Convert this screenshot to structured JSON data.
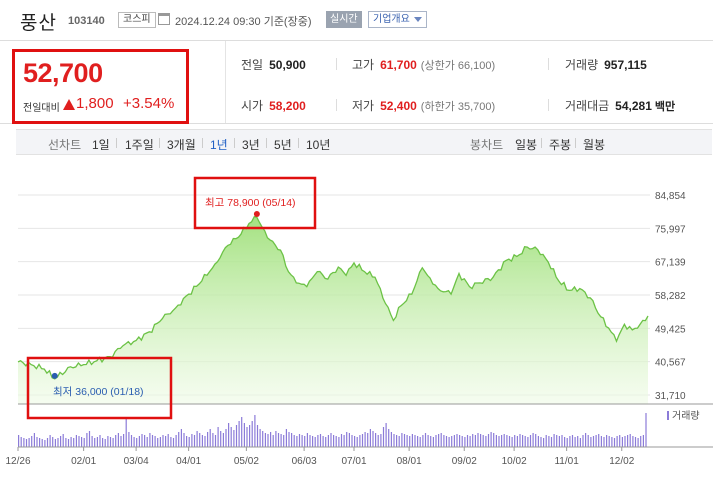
{
  "header": {
    "stock_name": "풍산",
    "stock_code": "103140",
    "market": "코스피",
    "timestamp": "2024.12.24 09:30 기준(장중)",
    "realtime_label": "실시간",
    "company_info_label": "기업개요"
  },
  "price": {
    "current": "52,700",
    "change_label": "전일대비",
    "change": "1,800",
    "change_pct": "+3.54%",
    "up_color": "#e01f1f"
  },
  "stats": {
    "prev_close": {
      "label": "전일",
      "value": "50,900"
    },
    "high": {
      "label": "고가",
      "value": "61,700",
      "limit": "(상한가 66,100)"
    },
    "volume": {
      "label": "거래량",
      "value": "957,115"
    },
    "open": {
      "label": "시가",
      "value": "58,200"
    },
    "low": {
      "label": "저가",
      "value": "52,400",
      "limit": "(하한가 35,700)"
    },
    "trade_value": {
      "label": "거래대금",
      "value": "54,281",
      "unit": "백만"
    }
  },
  "period_bar": {
    "line_label": "선차트",
    "periods": [
      "1일",
      "1주일",
      "3개월",
      "1년",
      "3년",
      "5년",
      "10년"
    ],
    "active": "1년",
    "candle_label": "봉차트",
    "candles": [
      "일봉",
      "주봉",
      "월봉"
    ]
  },
  "chart_data": {
    "type": "area",
    "y_ticks": [
      "84,854",
      "75,997",
      "67,139",
      "58,282",
      "49,425",
      "40,567",
      "31,710"
    ],
    "ylim": [
      31710,
      84854
    ],
    "x_ticks": [
      "12/26",
      "02/01",
      "03/04",
      "04/01",
      "05/02",
      "06/03",
      "07/01",
      "08/01",
      "09/02",
      "10/02",
      "11/01",
      "12/02"
    ],
    "x_tick_index": [
      0,
      25,
      45,
      65,
      87,
      109,
      128,
      149,
      170,
      189,
      209,
      230
    ],
    "volume_label": "거래량",
    "high_annotation": "최고 78,900 (05/14)",
    "low_annotation": "최저 36,000 (01/18)",
    "high_index": 91,
    "low_index": 14,
    "high_value": 78900,
    "low_value": 36000,
    "anchors": [
      [
        0,
        40500
      ],
      [
        5,
        39800
      ],
      [
        10,
        38600
      ],
      [
        14,
        36000
      ],
      [
        20,
        39200
      ],
      [
        25,
        39800
      ],
      [
        30,
        40800
      ],
      [
        35,
        41900
      ],
      [
        40,
        44800
      ],
      [
        45,
        46200
      ],
      [
        50,
        48500
      ],
      [
        55,
        52000
      ],
      [
        60,
        54800
      ],
      [
        65,
        58500
      ],
      [
        70,
        62000
      ],
      [
        75,
        66500
      ],
      [
        80,
        71500
      ],
      [
        85,
        74500
      ],
      [
        88,
        77300
      ],
      [
        91,
        78900
      ],
      [
        95,
        73500
      ],
      [
        100,
        70200
      ],
      [
        103,
        64500
      ],
      [
        106,
        61500
      ],
      [
        110,
        60500
      ],
      [
        114,
        64500
      ],
      [
        118,
        62500
      ],
      [
        122,
        65700
      ],
      [
        125,
        63500
      ],
      [
        128,
        66800
      ],
      [
        132,
        64500
      ],
      [
        136,
        63000
      ],
      [
        140,
        56000
      ],
      [
        143,
        51500
      ],
      [
        146,
        55500
      ],
      [
        150,
        58500
      ],
      [
        154,
        65500
      ],
      [
        156,
        63500
      ],
      [
        160,
        60000
      ],
      [
        165,
        58500
      ],
      [
        168,
        64000
      ],
      [
        172,
        60500
      ],
      [
        176,
        61500
      ],
      [
        181,
        63000
      ],
      [
        186,
        67500
      ],
      [
        190,
        68500
      ],
      [
        194,
        71000
      ],
      [
        198,
        70300
      ],
      [
        202,
        67000
      ],
      [
        206,
        62000
      ],
      [
        210,
        59500
      ],
      [
        214,
        60000
      ],
      [
        218,
        57500
      ],
      [
        222,
        52500
      ],
      [
        225,
        49500
      ],
      [
        228,
        46000
      ],
      [
        231,
        50500
      ],
      [
        234,
        49000
      ],
      [
        237,
        50500
      ],
      [
        240,
        52700
      ]
    ],
    "volumes": [
      12,
      10,
      9,
      8,
      9,
      11,
      14,
      10,
      9,
      8,
      7,
      9,
      12,
      10,
      8,
      9,
      11,
      13,
      9,
      8,
      10,
      9,
      12,
      11,
      10,
      9,
      14,
      16,
      11,
      9,
      10,
      12,
      9,
      8,
      11,
      10,
      9,
      12,
      14,
      11,
      13,
      28,
      15,
      12,
      10,
      9,
      11,
      13,
      12,
      10,
      14,
      12,
      11,
      9,
      10,
      12,
      11,
      13,
      10,
      9,
      12,
      15,
      18,
      14,
      11,
      10,
      13,
      12,
      16,
      14,
      12,
      11,
      15,
      18,
      14,
      12,
      20,
      16,
      14,
      18,
      24,
      20,
      17,
      22,
      26,
      30,
      24,
      20,
      22,
      26,
      32,
      22,
      18,
      16,
      14,
      13,
      15,
      12,
      16,
      14,
      13,
      12,
      18,
      15,
      14,
      12,
      11,
      13,
      12,
      11,
      14,
      12,
      11,
      10,
      12,
      13,
      11,
      10,
      12,
      14,
      12,
      11,
      10,
      13,
      12,
      15,
      14,
      12,
      11,
      10,
      12,
      13,
      15,
      14,
      18,
      16,
      14,
      12,
      13,
      20,
      24,
      18,
      15,
      13,
      12,
      11,
      14,
      13,
      12,
      11,
      13,
      12,
      11,
      10,
      12,
      14,
      12,
      11,
      10,
      12,
      13,
      14,
      12,
      11,
      10,
      11,
      12,
      13,
      12,
      11,
      10,
      12,
      11,
      13,
      12,
      14,
      13,
      12,
      11,
      13,
      15,
      14,
      12,
      11,
      12,
      13,
      12,
      11,
      10,
      12,
      11,
      13,
      12,
      11,
      10,
      12,
      14,
      13,
      11,
      10,
      9,
      12,
      11,
      10,
      13,
      12,
      11,
      12,
      10,
      9,
      11,
      12,
      10,
      11,
      9,
      12,
      14,
      12,
      10,
      11,
      12,
      13,
      11,
      10,
      12,
      11,
      10,
      9,
      11,
      12,
      10,
      11,
      12,
      13,
      11,
      10,
      9,
      11,
      12,
      34
    ]
  }
}
